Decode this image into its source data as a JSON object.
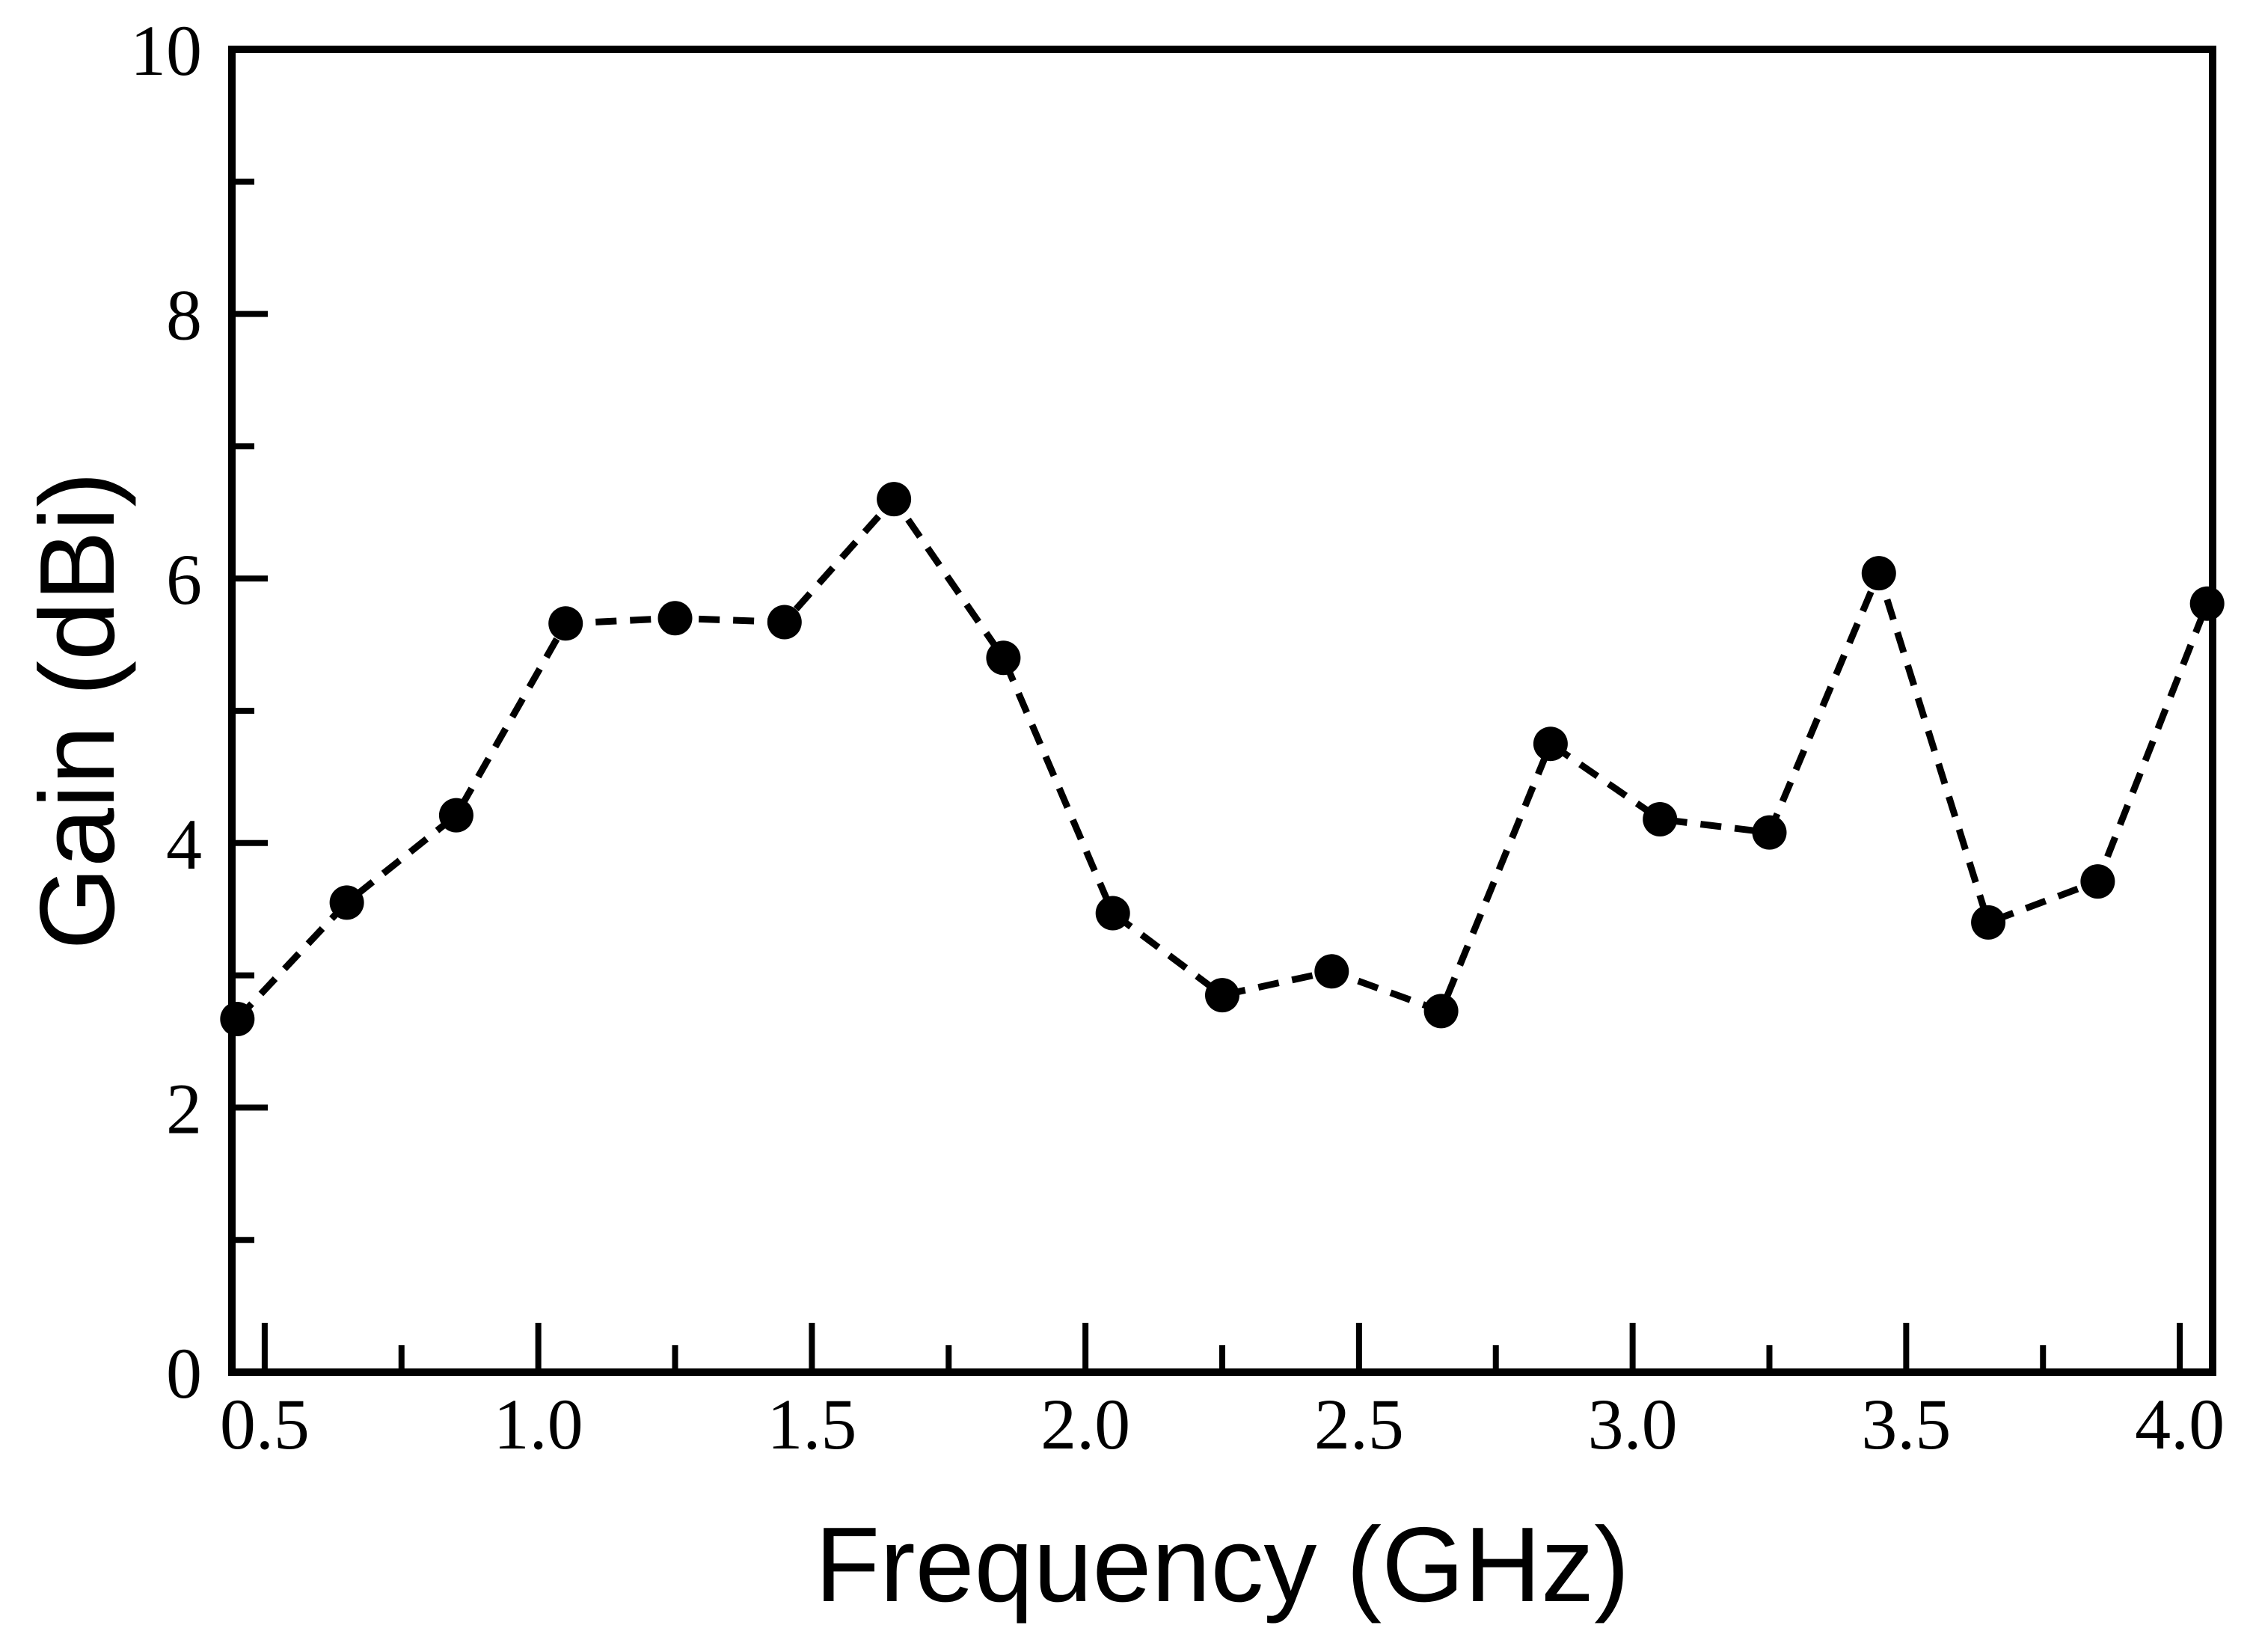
{
  "chart_data": {
    "type": "line",
    "title": "",
    "xlabel": "Frequency (GHz)",
    "ylabel": "Gain (dBi)",
    "xlim": [
      0.44,
      4.06
    ],
    "ylim": [
      0,
      10
    ],
    "x_ticks": [
      "0.5",
      "1.0",
      "1.5",
      "2.0",
      "2.5",
      "3.0",
      "3.5",
      "4.0"
    ],
    "y_ticks": [
      "0",
      "2",
      "4",
      "6",
      "8",
      "10"
    ],
    "grid": false,
    "legend": "none",
    "series": [
      {
        "line_style": "dashed",
        "marker": "filled-circle",
        "color": "#000000",
        "x": [
          0.45,
          0.65,
          0.85,
          1.05,
          1.25,
          1.45,
          1.65,
          1.85,
          2.05,
          2.25,
          2.45,
          2.65,
          2.85,
          3.05,
          3.25,
          3.45,
          3.65,
          3.85,
          4.05
        ],
        "values": [
          2.67,
          3.55,
          4.21,
          5.66,
          5.7,
          5.67,
          6.6,
          5.4,
          3.47,
          2.85,
          3.03,
          2.73,
          4.75,
          4.18,
          4.08,
          6.04,
          3.4,
          3.71,
          5.81
        ]
      }
    ]
  }
}
